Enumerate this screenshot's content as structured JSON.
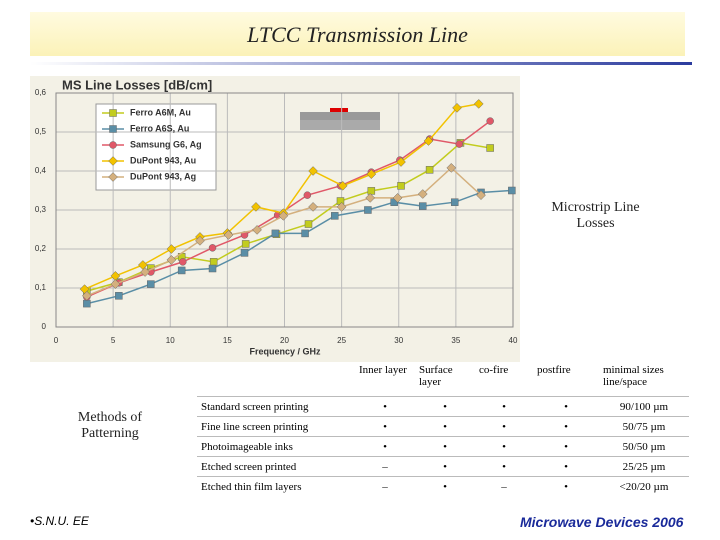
{
  "slide": {
    "title": "LTCC Transmission Line",
    "chart_caption": "Microstrip Line Losses",
    "table_caption": "Methods of Patterning",
    "footer_left": "•S.N.U. EE",
    "footer_right": "Microwave Devices 2006"
  },
  "chart_data": {
    "type": "line",
    "title": "MS Line Losses  [dB/cm]",
    "x_label": "Frequency / GHz",
    "xlim": [
      0,
      40
    ],
    "xticks": [
      0,
      5,
      10,
      15,
      20,
      25,
      30,
      35,
      40
    ],
    "ylim": [
      0,
      0.6
    ],
    "yticks": [
      0,
      {
        "value": 0.1,
        "label": "0,1"
      },
      {
        "value": 0.2,
        "label": "0,2"
      },
      {
        "value": 0.3,
        "label": "0,3"
      },
      {
        "value": 0.4,
        "label": "0,4"
      },
      {
        "value": 0.5,
        "label": "0,5"
      },
      {
        "value": 0.6,
        "label": "0,6"
      }
    ],
    "grid": true,
    "series": [
      {
        "name": "Ferro A6M, Au",
        "color": "#c2cc1e",
        "marker": "square",
        "x": [
          2.7,
          5.5,
          8.3,
          11,
          13.8,
          16.6,
          19.3,
          22.1,
          24.9,
          27.6,
          30.2,
          32.7,
          35.4,
          38
        ],
        "values": [
          0.092,
          0.115,
          0.151,
          0.18,
          0.167,
          0.213,
          0.238,
          0.264,
          0.323,
          0.349,
          0.362,
          0.403,
          0.472,
          0.459
        ]
      },
      {
        "name": "Ferro A6S, Au",
        "color": "#5a8ea6",
        "marker": "square",
        "x": [
          2.7,
          5.5,
          8.3,
          11,
          13.7,
          16.5,
          19.2,
          21.8,
          24.4,
          27.3,
          29.6,
          32.1,
          34.9,
          37.2,
          39.9
        ],
        "values": [
          0.06,
          0.08,
          0.11,
          0.145,
          0.15,
          0.19,
          0.24,
          0.24,
          0.285,
          0.3,
          0.32,
          0.31,
          0.32,
          0.345,
          0.35
        ]
      },
      {
        "name": "Samsung G6, Ag",
        "color": "#e05868",
        "marker": "circle",
        "x": [
          2.7,
          5.5,
          8.3,
          11.1,
          13.7,
          16.5,
          19.4,
          22,
          24.9,
          27.6,
          30.1,
          32.7,
          35.3,
          38
        ],
        "values": [
          0.077,
          0.113,
          0.141,
          0.167,
          0.203,
          0.236,
          0.287,
          0.338,
          0.362,
          0.397,
          0.428,
          0.482,
          0.469,
          0.528
        ]
      },
      {
        "name": "DuPont 943, Au",
        "color": "#f2c200",
        "marker": "diamond",
        "x": [
          2.5,
          5.2,
          7.6,
          10.1,
          12.6,
          15,
          17.5,
          19.9,
          22.5,
          25.1,
          27.6,
          30.2,
          32.6,
          35.1,
          37
        ],
        "values": [
          0.097,
          0.131,
          0.159,
          0.2,
          0.231,
          0.241,
          0.308,
          0.292,
          0.4,
          0.362,
          0.392,
          0.423,
          0.477,
          0.562,
          0.572
        ]
      },
      {
        "name": "DuPont 943, Ag",
        "color": "#d4b07e",
        "marker": "diamond",
        "x": [
          2.7,
          5.2,
          7.8,
          10.1,
          12.6,
          15.1,
          17.6,
          19.9,
          22.5,
          25,
          27.5,
          29.9,
          32.1,
          34.6,
          37.2
        ],
        "values": [
          0.08,
          0.11,
          0.141,
          0.172,
          0.221,
          0.236,
          0.249,
          0.285,
          0.308,
          0.308,
          0.331,
          0.331,
          0.341,
          0.408,
          0.338
        ]
      }
    ]
  },
  "table": {
    "header": [
      "Inner layer",
      "Surface layer",
      "co-fire",
      "postfire",
      "minimal sizes line/space"
    ],
    "rows": [
      [
        "Standard screen printing",
        "•",
        "•",
        "•",
        "•",
        "90/100 µm"
      ],
      [
        "Fine line screen printing",
        "•",
        "•",
        "•",
        "•",
        "50/75 µm"
      ],
      [
        "Photoimageable inks",
        "•",
        "•",
        "•",
        "•",
        "50/50 µm"
      ],
      [
        "Etched screen printed",
        "–",
        "•",
        "•",
        "•",
        "25/25 µm"
      ],
      [
        "Etched thin film layers",
        "–",
        "•",
        "–",
        "•",
        "<20/20 µm"
      ]
    ]
  }
}
